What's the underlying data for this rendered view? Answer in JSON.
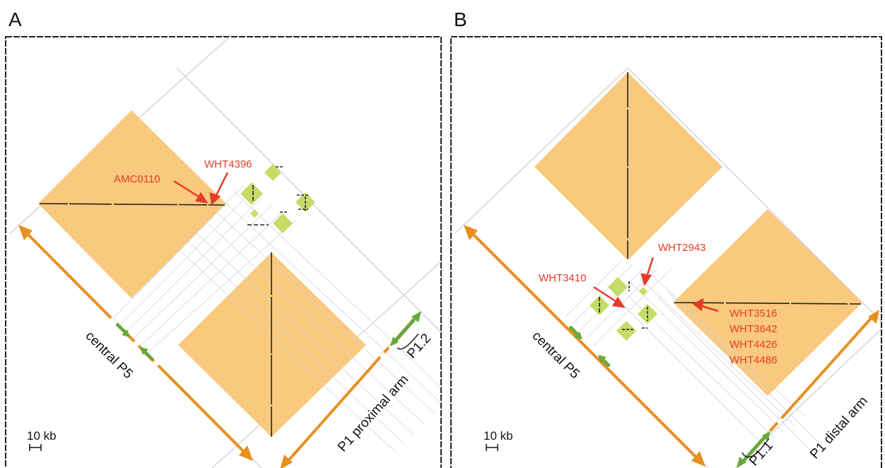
{
  "panels": [
    {
      "letter": "A",
      "marker_labels": [
        "WHT4396",
        "AMC0110"
      ],
      "arm_left_label": "central P5",
      "arm_right_label": "P1 proximal arm",
      "segment_label": "P1.2",
      "scale_label": "10 kb"
    },
    {
      "letter": "B",
      "marker_labels": [
        "WHT2943",
        "WHT3410",
        "WHT3516",
        "WHT3642",
        "WHT4426",
        "WHT4486"
      ],
      "arm_left_label": "central P5",
      "arm_right_label": "P1 distal arm",
      "segment_label": "P1.1",
      "scale_label": "10 kb"
    }
  ],
  "colors": {
    "orange_block": "#f9c97d",
    "green_block": "#c5dc66",
    "arrow_orange": "#e8901f",
    "arrow_green": "#6aa83e",
    "marker_red": "#e53b2a",
    "grid_line": "#cfc9d6",
    "dot_line": "#222222"
  }
}
